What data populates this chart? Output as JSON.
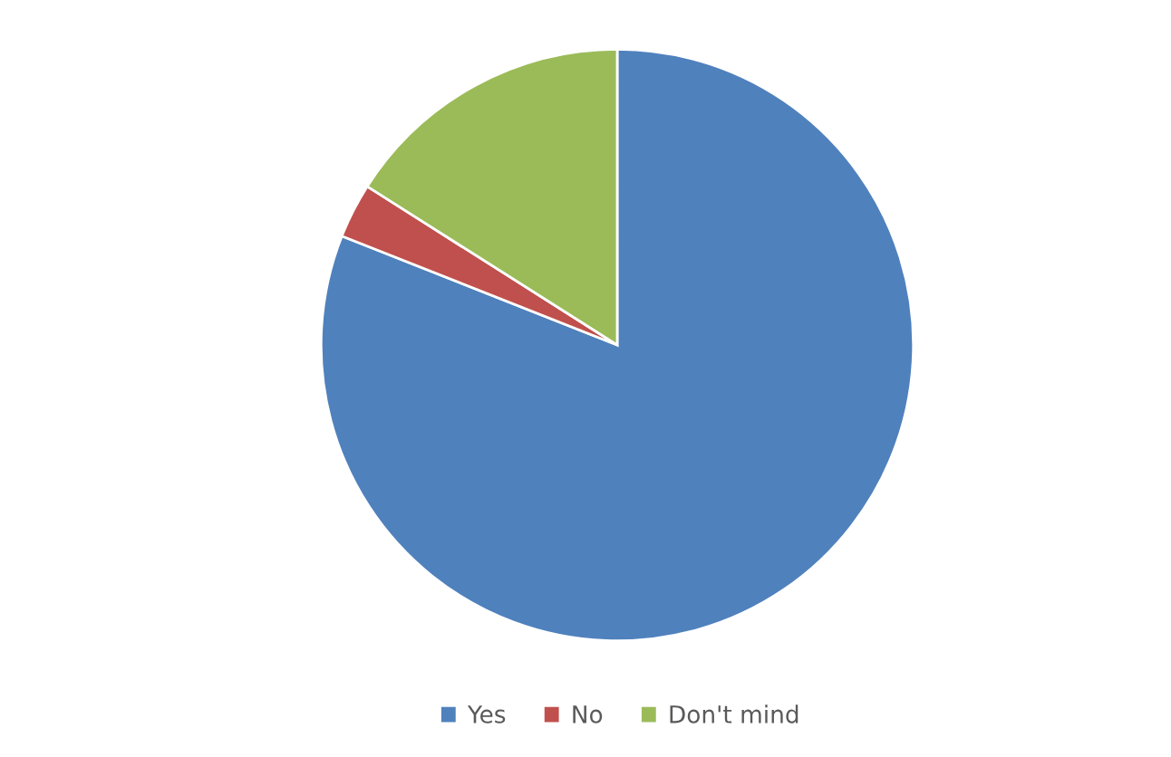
{
  "chart_data": {
    "type": "pie",
    "categories": [
      "Yes",
      "No",
      "Don't mind"
    ],
    "values": [
      81,
      3,
      16
    ],
    "colors": [
      "#4f81bd",
      "#c0504d",
      "#9bbb59"
    ],
    "legend": "bottom"
  }
}
